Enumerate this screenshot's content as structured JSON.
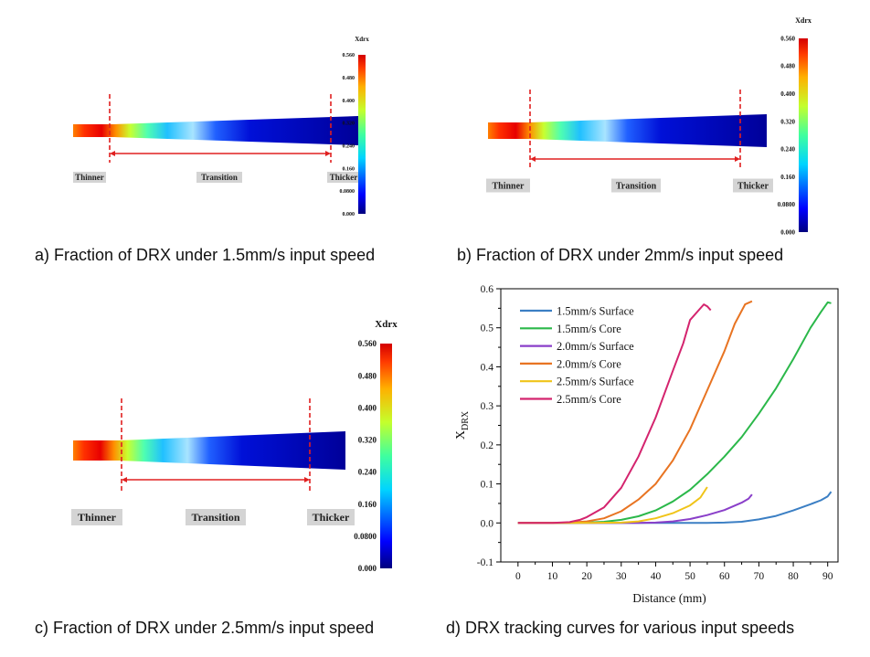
{
  "panels": [
    {
      "id": "a",
      "caption": "a) Fraction of DRX under 1.5mm/s input speed",
      "colorbar_title": "Xdrx",
      "colorbar_ticks": [
        "0.560",
        "0.480",
        "0.400",
        "0.320",
        "0.240",
        "0.160",
        "0.0800",
        "0.000"
      ],
      "labels": {
        "thinner": "Thinner",
        "transition": "Transition",
        "thicker": "Thicker"
      }
    },
    {
      "id": "b",
      "caption": "b) Fraction of DRX under 2mm/s input speed",
      "colorbar_title": "Xdrx",
      "colorbar_ticks": [
        "0.560",
        "0.480",
        "0.400",
        "0.320",
        "0.240",
        "0.160",
        "0.0800",
        "0.000"
      ],
      "labels": {
        "thinner": "Thinner",
        "transition": "Transition",
        "thicker": "Thicker"
      }
    },
    {
      "id": "c",
      "caption": "c) Fraction of DRX under 2.5mm/s input speed",
      "colorbar_title": "Xdrx",
      "colorbar_ticks": [
        "0.560",
        "0.480",
        "0.400",
        "0.320",
        "0.240",
        "0.160",
        "0.0800",
        "0.000"
      ],
      "labels": {
        "thinner": "Thinner",
        "transition": "Transition",
        "thicker": "Thicker"
      }
    }
  ],
  "caption_d": "d) DRX tracking curves for various input speeds",
  "chart_data": {
    "type": "line",
    "xlabel": "Distance (mm)",
    "ylabel": "X",
    "ylabel_sub": "DRX",
    "xlim": [
      -5,
      93
    ],
    "ylim": [
      -0.1,
      0.6
    ],
    "xticks": [
      0,
      10,
      20,
      30,
      40,
      50,
      60,
      70,
      80,
      90
    ],
    "yticks": [
      -0.1,
      0.0,
      0.1,
      0.2,
      0.3,
      0.4,
      0.5,
      0.6
    ],
    "xtick_labels": [
      "0",
      "10",
      "20",
      "30",
      "40",
      "50",
      "60",
      "70",
      "80",
      "90"
    ],
    "ytick_labels": [
      "-0.1",
      "0.0",
      "0.1",
      "0.2",
      "0.3",
      "0.4",
      "0.5",
      "0.6"
    ],
    "legend_position": "top-left",
    "series": [
      {
        "name": "1.5mm/s Surface",
        "color": "#3b7fc4",
        "x": [
          0,
          10,
          20,
          30,
          40,
          50,
          55,
          60,
          65,
          70,
          75,
          80,
          85,
          88,
          90,
          91
        ],
        "y": [
          0,
          0,
          0,
          0,
          0,
          0,
          0,
          0.001,
          0.003,
          0.009,
          0.018,
          0.032,
          0.048,
          0.058,
          0.068,
          0.08
        ]
      },
      {
        "name": "1.5mm/s Core",
        "color": "#2bb84a",
        "x": [
          0,
          10,
          15,
          20,
          25,
          30,
          35,
          40,
          45,
          50,
          55,
          60,
          65,
          70,
          75,
          80,
          85,
          88,
          90,
          91
        ],
        "y": [
          0,
          0,
          0,
          0.001,
          0.003,
          0.008,
          0.017,
          0.032,
          0.055,
          0.085,
          0.125,
          0.17,
          0.22,
          0.28,
          0.345,
          0.42,
          0.5,
          0.54,
          0.565,
          0.563
        ]
      },
      {
        "name": "2.0mm/s Surface",
        "color": "#8a3fc9",
        "x": [
          0,
          10,
          20,
          25,
          30,
          35,
          40,
          45,
          50,
          55,
          60,
          65,
          67,
          68
        ],
        "y": [
          0,
          0,
          0,
          0,
          0,
          0,
          0.001,
          0.004,
          0.01,
          0.02,
          0.033,
          0.052,
          0.062,
          0.073
        ]
      },
      {
        "name": "2.0mm/s Core",
        "color": "#e87422",
        "x": [
          0,
          10,
          15,
          20,
          25,
          30,
          35,
          40,
          45,
          50,
          55,
          60,
          63,
          66,
          68
        ],
        "y": [
          0,
          0,
          0.001,
          0.004,
          0.012,
          0.03,
          0.06,
          0.1,
          0.16,
          0.24,
          0.34,
          0.44,
          0.51,
          0.56,
          0.568
        ]
      },
      {
        "name": "2.5mm/s Surface",
        "color": "#f0c419",
        "x": [
          0,
          10,
          20,
          30,
          35,
          40,
          45,
          50,
          53,
          55
        ],
        "y": [
          0,
          0,
          0,
          0.001,
          0.004,
          0.012,
          0.025,
          0.045,
          0.065,
          0.092
        ]
      },
      {
        "name": "2.5mm/s Core",
        "color": "#d4246e",
        "x": [
          0,
          10,
          15,
          18,
          20,
          25,
          30,
          35,
          40,
          45,
          48,
          50,
          53,
          54,
          55,
          56
        ],
        "y": [
          0,
          0,
          0.002,
          0.008,
          0.015,
          0.04,
          0.09,
          0.17,
          0.27,
          0.39,
          0.46,
          0.52,
          0.55,
          0.56,
          0.555,
          0.545
        ]
      }
    ]
  }
}
